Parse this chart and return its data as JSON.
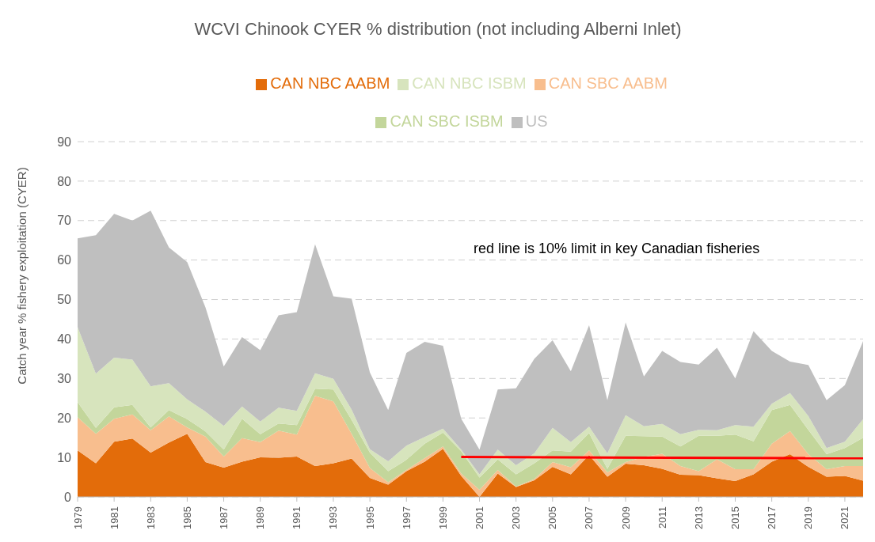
{
  "chart_data": {
    "type": "area",
    "title": "WCVI Chinook CYER % distribution (not including Alberni Inlet)",
    "ylabel": "Catch year % fishery exploitation (CYER)",
    "stacked": true,
    "grid": "y",
    "legend": "top",
    "marker": "none",
    "x": [
      1979,
      1980,
      1981,
      1982,
      1983,
      1984,
      1985,
      1986,
      1987,
      1988,
      1989,
      1990,
      1991,
      1992,
      1993,
      1994,
      1995,
      1996,
      1997,
      1998,
      1999,
      2000,
      2001,
      2002,
      2003,
      2004,
      2005,
      2006,
      2007,
      2008,
      2009,
      2010,
      2011,
      2012,
      2013,
      2014,
      2015,
      2016,
      2017,
      2018,
      2019,
      2020,
      2021,
      2022
    ],
    "xlim": [
      1979,
      2022
    ],
    "xticks": [
      1979,
      1981,
      1983,
      1985,
      1987,
      1989,
      1991,
      1993,
      1995,
      1997,
      1999,
      2001,
      2003,
      2005,
      2007,
      2009,
      2011,
      2013,
      2015,
      2017,
      2019,
      2021
    ],
    "ylim": [
      0,
      90
    ],
    "yticks": [
      0,
      10,
      20,
      30,
      40,
      50,
      60,
      70,
      80,
      90
    ],
    "series": [
      {
        "name": "CAN NBC AABM",
        "color": "#e36c0a",
        "values": [
          11.8,
          8.5,
          14,
          14.8,
          11.2,
          13.8,
          16,
          8.8,
          7.4,
          8.9,
          10,
          9.9,
          10.2,
          7.8,
          8.5,
          9.7,
          4.8,
          3.1,
          6.5,
          8.9,
          12.2,
          5.3,
          0,
          5.9,
          2.5,
          4.2,
          7.6,
          5.7,
          10.6,
          5.1,
          8.4,
          8,
          7.1,
          5.6,
          5.5,
          4.7,
          4,
          5.7,
          8.9,
          10.8,
          7.6,
          5.1,
          5.3,
          4.1
        ]
      },
      {
        "name": "CAN SBC AABM",
        "color": "#f8be8e",
        "values": [
          8.4,
          7.5,
          5.8,
          6.1,
          5.7,
          6.6,
          1.6,
          6.5,
          2.8,
          6,
          3.9,
          6.9,
          5.6,
          17.8,
          15.7,
          6.3,
          2.5,
          0.6,
          0.3,
          0.9,
          0.6,
          0.6,
          1.8,
          0.9,
          0.1,
          0.3,
          1.2,
          1.8,
          1.2,
          1.1,
          0.4,
          2.1,
          3.8,
          2.2,
          1,
          4.8,
          3,
          1.3,
          4.6,
          5.9,
          3.2,
          1.9,
          2.5,
          3.7
        ]
      },
      {
        "name": "CAN SBC ISBM",
        "color": "#c3d69b",
        "values": [
          3.8,
          1.5,
          2.9,
          2.4,
          0.7,
          1.6,
          2.1,
          1.3,
          1.8,
          4.9,
          2,
          1.8,
          2.4,
          1.8,
          3,
          3.5,
          3.9,
          2.8,
          2.6,
          3.7,
          3.5,
          5.7,
          3.1,
          2.7,
          3.1,
          4,
          3,
          4,
          4.4,
          0.9,
          6.7,
          5.3,
          4.4,
          5,
          9,
          6,
          8.8,
          7.1,
          8.5,
          6.6,
          6.2,
          3.8,
          4.6,
          7.2
        ]
      },
      {
        "name": "CAN NBC ISBM",
        "color": "#d7e4bd",
        "values": [
          19,
          13.7,
          12.6,
          11.5,
          10.4,
          6.8,
          5,
          5,
          6,
          3.1,
          3.2,
          4,
          3.6,
          3.9,
          2.7,
          2.6,
          0.9,
          2.5,
          3.6,
          1.7,
          1,
          0.4,
          0.8,
          2.5,
          2.3,
          2.5,
          5.7,
          2.4,
          1.6,
          3.9,
          5.2,
          2.5,
          3.2,
          3.1,
          1.5,
          1.4,
          2.4,
          3.7,
          1.6,
          3,
          3.5,
          1.6,
          1.6,
          4.7
        ]
      },
      {
        "name": "US",
        "color": "#bfbfbf",
        "values": [
          22.5,
          35.1,
          36.4,
          35.2,
          44.5,
          34.4,
          34.8,
          26.4,
          15,
          17.6,
          18.1,
          23.4,
          25,
          32.7,
          20.9,
          28.1,
          19.4,
          13,
          23.5,
          24.1,
          21,
          7.8,
          6.3,
          15.2,
          19.5,
          24,
          22.2,
          17.9,
          25.7,
          13.5,
          23.5,
          12.6,
          18.5,
          18.3,
          16.5,
          20.9,
          11.8,
          24.2,
          13.4,
          8,
          12.9,
          12.1,
          14.3,
          19.8
        ]
      },
      {
        "type": "line",
        "color": "#ff0000",
        "x": [
          2000,
          2022
        ],
        "values": [
          10.1,
          9.8
        ]
      }
    ],
    "annotations": [
      "red line is 10% limit in key Canadian fisheries"
    ]
  }
}
